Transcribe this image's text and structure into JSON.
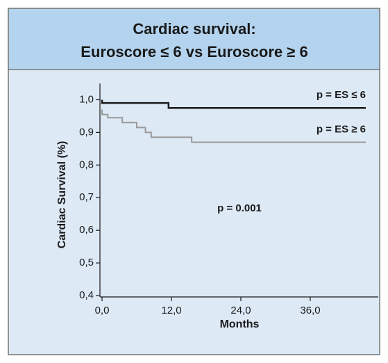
{
  "chart_data": {
    "type": "step",
    "title": [
      "Cardiac survival:",
      "Euroscore ≤ 6 vs Euroscore ≥ 6"
    ],
    "y_label": "Cardiac Survival (%)",
    "x_label": "Months",
    "annotation": "p = 0.001",
    "xlim": [
      0,
      48
    ],
    "ylim": [
      0.4,
      1.05
    ],
    "xticks": [
      {
        "value": 0,
        "label": "0,0"
      },
      {
        "value": 12,
        "label": "12,0"
      },
      {
        "value": 24,
        "label": "24,0"
      },
      {
        "value": 36,
        "label": "36,0"
      }
    ],
    "yticks": [
      {
        "value": 0.4,
        "label": "0,4"
      },
      {
        "value": 0.5,
        "label": "0,5"
      },
      {
        "value": 0.6,
        "label": "0,6"
      },
      {
        "value": 0.7,
        "label": "0,7"
      },
      {
        "value": 0.8,
        "label": "0,8"
      },
      {
        "value": 0.9,
        "label": "0,9"
      },
      {
        "value": 1.0,
        "label": "1,0"
      }
    ],
    "series": [
      {
        "name": "p = ES ≤ 6",
        "color": "#1a1a1a",
        "x": [
          0,
          11.5,
          29.5,
          45.6
        ],
        "values": [
          1.0,
          0.99,
          0.975,
          0.975
        ]
      },
      {
        "name": "p = ES ≥ 6",
        "color": "#999999",
        "x": [
          0,
          1,
          3.5,
          6,
          7.5,
          8.5,
          15.5,
          45.6
        ],
        "values": [
          0.97,
          0.955,
          0.945,
          0.93,
          0.915,
          0.9,
          0.885,
          0.87
        ]
      }
    ]
  }
}
